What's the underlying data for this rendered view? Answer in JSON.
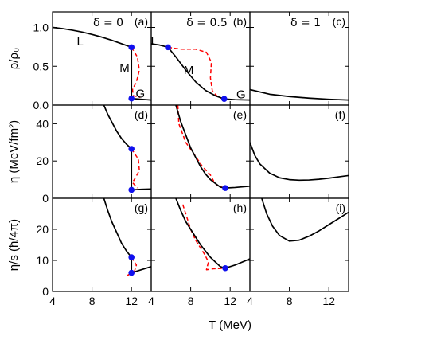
{
  "chart_data": {
    "type": "line",
    "layout": "3x3 grid of panels",
    "xlabel": "T (MeV)",
    "x_ticks": [
      "4",
      "8",
      "12"
    ],
    "xlim": [
      4,
      14
    ],
    "columns": [
      {
        "label": "δ = 0"
      },
      {
        "label": "δ = 0.5"
      },
      {
        "label": "δ = 1"
      }
    ],
    "rows": [
      {
        "ylabel": "ρ/ρ₀",
        "ylim": [
          0,
          1.2
        ],
        "y_ticks": [
          "0.0",
          "0.5",
          "1.0"
        ],
        "y_tick_values": [
          0,
          0.5,
          1.0
        ]
      },
      {
        "ylabel": "η (MeV/fm²)",
        "ylim": [
          0,
          50
        ],
        "y_ticks": [
          "0",
          "20",
          "40"
        ],
        "y_tick_values": [
          0,
          20,
          40
        ]
      },
      {
        "ylabel": "η/s (ħ/4π)",
        "ylim": [
          0,
          30
        ],
        "y_ticks": [
          "0",
          "10",
          "20"
        ],
        "y_tick_values": [
          0,
          10,
          20
        ]
      }
    ],
    "panels": [
      {
        "id": "a",
        "letter": "(a)",
        "row": 0,
        "col": 0,
        "solid": [
          [
            [
              4,
              1.0
            ],
            [
              5,
              0.985
            ],
            [
              6,
              0.965
            ],
            [
              7,
              0.94
            ],
            [
              8,
              0.91
            ],
            [
              9,
              0.875
            ],
            [
              10,
              0.835
            ],
            [
              11,
              0.79
            ],
            [
              12,
              0.745
            ]
          ],
          [
            [
              12,
              0.745
            ],
            [
              12,
              0.085
            ]
          ],
          [
            [
              12,
              0.085
            ],
            [
              13,
              0.075
            ],
            [
              14,
              0.065
            ]
          ]
        ],
        "dashed": [
          [
            [
              12,
              0.745
            ],
            [
              12.6,
              0.62
            ],
            [
              12.8,
              0.45
            ],
            [
              12.5,
              0.3
            ],
            [
              12.1,
              0.2
            ],
            [
              12.2,
              0.12
            ],
            [
              12.9,
              0.1
            ]
          ]
        ],
        "points": [
          [
            12,
            0.745
          ],
          [
            12,
            0.085
          ]
        ],
        "annotations": [
          {
            "text": "L",
            "x": 6.8,
            "y": 0.82
          },
          {
            "text": "M",
            "x": 11.3,
            "y": 0.48
          },
          {
            "text": "G",
            "x": 12.9,
            "y": 0.15
          }
        ]
      },
      {
        "id": "b",
        "letter": "(b)",
        "row": 0,
        "col": 1,
        "solid": [
          [
            [
              4,
              0.79
            ],
            [
              4.8,
              0.775
            ],
            [
              5.7,
              0.745
            ],
            [
              6.5,
              0.62
            ],
            [
              7.5,
              0.45
            ],
            [
              8.5,
              0.3
            ],
            [
              9.5,
              0.19
            ],
            [
              10.5,
              0.12
            ],
            [
              11.4,
              0.08
            ],
            [
              12.5,
              0.07
            ],
            [
              14,
              0.065
            ]
          ]
        ],
        "dashed": [
          [
            [
              5.7,
              0.745
            ],
            [
              7,
              0.72
            ],
            [
              8.5,
              0.72
            ],
            [
              9.6,
              0.68
            ],
            [
              10.1,
              0.55
            ],
            [
              10.0,
              0.35
            ],
            [
              10.2,
              0.18
            ],
            [
              10.8,
              0.1
            ],
            [
              11.4,
              0.08
            ]
          ]
        ],
        "points": [
          [
            5.7,
            0.745
          ],
          [
            11.4,
            0.08
          ]
        ],
        "annotations": [
          {
            "text": "L",
            "x": 4.3,
            "y": 0.82
          },
          {
            "text": "M",
            "x": 7.8,
            "y": 0.45
          },
          {
            "text": "G",
            "x": 13.1,
            "y": 0.14
          }
        ]
      },
      {
        "id": "c",
        "letter": "(c)",
        "row": 0,
        "col": 2,
        "solid": [
          [
            [
              4,
              0.2
            ],
            [
              5,
              0.17
            ],
            [
              6,
              0.14
            ],
            [
              8,
              0.11
            ],
            [
              10,
              0.09
            ],
            [
              12,
              0.075
            ],
            [
              14,
              0.065
            ]
          ]
        ],
        "dashed": [],
        "points": [],
        "annotations": []
      },
      {
        "id": "d",
        "letter": "(d)",
        "row": 1,
        "col": 0,
        "solid": [
          [
            [
              9.2,
              50
            ],
            [
              9.6,
              45
            ],
            [
              10,
              41
            ],
            [
              10.5,
              36
            ],
            [
              11,
              32
            ],
            [
              11.5,
              29
            ],
            [
              12,
              26.5
            ]
          ],
          [
            [
              12,
              26.5
            ],
            [
              12,
              4.5
            ]
          ],
          [
            [
              12,
              4.5
            ],
            [
              13,
              4.8
            ],
            [
              14,
              5
            ]
          ]
        ],
        "dashed": [
          [
            [
              12,
              26.5
            ],
            [
              12.7,
              21
            ],
            [
              12.8,
              15
            ],
            [
              12.4,
              11
            ],
            [
              12.1,
              8.5
            ],
            [
              12.6,
              5.5
            ]
          ]
        ],
        "points": [
          [
            12,
            26.5
          ],
          [
            12,
            4.5
          ]
        ],
        "annotations": []
      },
      {
        "id": "e",
        "letter": "(e)",
        "row": 1,
        "col": 1,
        "solid": [
          [
            [
              6.5,
              50
            ],
            [
              7,
              41
            ],
            [
              7.5,
              34
            ],
            [
              8,
              27
            ],
            [
              8.5,
              22
            ],
            [
              9,
              17
            ],
            [
              9.5,
              13
            ],
            [
              10,
              10
            ],
            [
              10.5,
              8
            ],
            [
              11,
              6
            ],
            [
              11.5,
              5.5
            ],
            [
              12.5,
              5.8
            ],
            [
              14,
              6.5
            ]
          ]
        ],
        "dashed": [
          [
            [
              6.7,
              50
            ],
            [
              6.8,
              40
            ],
            [
              7.5,
              30
            ],
            [
              8.3,
              24
            ],
            [
              9.2,
              17
            ],
            [
              10,
              12.5
            ],
            [
              10.4,
              8.5
            ],
            [
              10.8,
              6.5
            ],
            [
              11.5,
              5.5
            ]
          ]
        ],
        "points": [
          [
            11.5,
            5.5
          ]
        ],
        "annotations": []
      },
      {
        "id": "f",
        "letter": "(f)",
        "row": 1,
        "col": 2,
        "solid": [
          [
            [
              4,
              30
            ],
            [
              4.5,
              23
            ],
            [
              5,
              18.5
            ],
            [
              6,
              13.5
            ],
            [
              7,
              11
            ],
            [
              8,
              10
            ],
            [
              9,
              9.7
            ],
            [
              10,
              9.8
            ],
            [
              11,
              10.2
            ],
            [
              12,
              10.8
            ],
            [
              13,
              11.5
            ],
            [
              14,
              12.2
            ]
          ]
        ],
        "dashed": [],
        "points": [],
        "annotations": []
      },
      {
        "id": "g",
        "letter": "(g)",
        "row": 2,
        "col": 0,
        "solid": [
          [
            [
              9.2,
              30
            ],
            [
              9.6,
              26
            ],
            [
              10,
              22.5
            ],
            [
              10.5,
              19
            ],
            [
              11,
              15.5
            ],
            [
              11.5,
              13
            ],
            [
              12,
              11
            ]
          ],
          [
            [
              12,
              11
            ],
            [
              12,
              6
            ]
          ],
          [
            [
              12,
              6
            ],
            [
              13,
              7
            ],
            [
              14,
              8
            ]
          ]
        ],
        "dashed": [
          [
            [
              12,
              11
            ],
            [
              12.5,
              8.5
            ],
            [
              12.3,
              6.5
            ],
            [
              11.5,
              5
            ],
            [
              12,
              6
            ]
          ]
        ],
        "points": [
          [
            12,
            11
          ],
          [
            12,
            6
          ]
        ],
        "annotations": []
      },
      {
        "id": "h",
        "letter": "(h)",
        "row": 2,
        "col": 1,
        "solid": [
          [
            [
              6.5,
              30
            ],
            [
              7,
              26
            ],
            [
              7.5,
              22.5
            ],
            [
              8,
              20
            ],
            [
              8.5,
              17.5
            ],
            [
              9,
              15
            ],
            [
              9.5,
              13
            ],
            [
              10,
              11
            ],
            [
              10.5,
              9.5
            ],
            [
              11,
              8
            ],
            [
              11.5,
              7.5
            ],
            [
              12.5,
              8.5
            ],
            [
              14,
              10.5
            ]
          ]
        ],
        "dashed": [
          [
            [
              7.2,
              28
            ],
            [
              7.6,
              24
            ],
            [
              8,
              20
            ],
            [
              8.5,
              16.5
            ],
            [
              9,
              14
            ],
            [
              9.4,
              12
            ],
            [
              9.8,
              9.5
            ],
            [
              9.6,
              7
            ],
            [
              10.3,
              7.3
            ],
            [
              11.5,
              7.5
            ]
          ]
        ],
        "points": [
          [
            11.5,
            7.5
          ]
        ],
        "annotations": []
      },
      {
        "id": "i",
        "letter": "(i)",
        "row": 2,
        "col": 2,
        "solid": [
          [
            [
              5.2,
              30
            ],
            [
              5.7,
              25
            ],
            [
              6.3,
              21
            ],
            [
              7,
              18
            ],
            [
              8,
              16.2
            ],
            [
              9,
              16.5
            ],
            [
              10,
              17.8
            ],
            [
              11,
              19.5
            ],
            [
              12,
              21.5
            ],
            [
              13,
              23.5
            ],
            [
              14,
              25.5
            ]
          ]
        ],
        "dashed": [],
        "points": [],
        "annotations": []
      }
    ],
    "colors": {
      "solid": "#000000",
      "dashed": "#ff0000",
      "point": "#1010ee"
    }
  }
}
